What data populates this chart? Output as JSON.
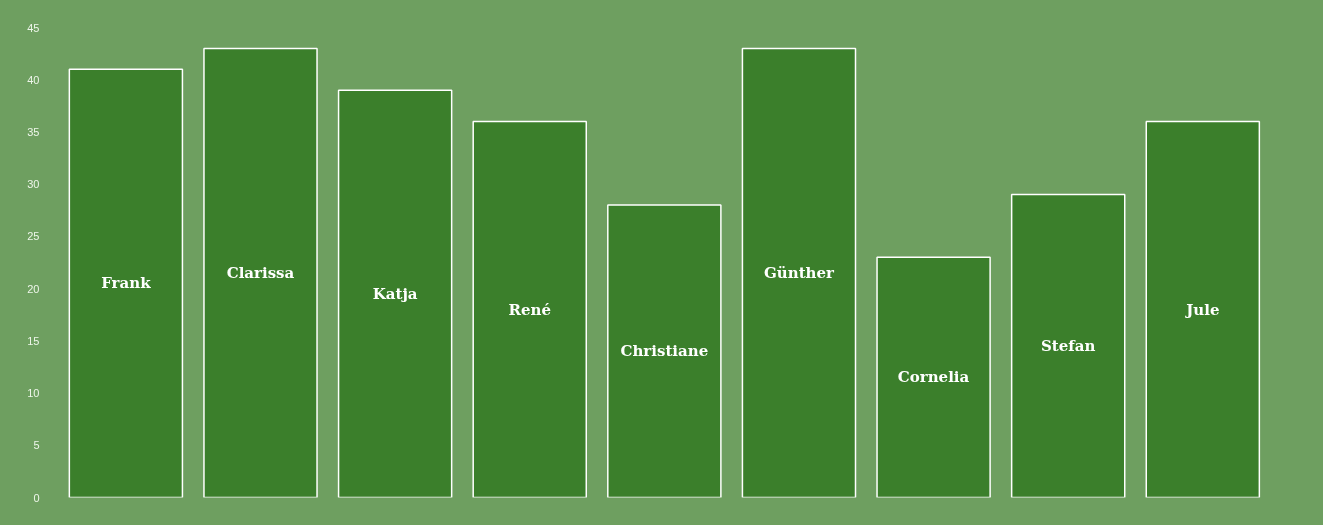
{
  "chart_data": {
    "type": "bar",
    "categories": [
      "Frank",
      "Clarissa",
      "Katja",
      "René",
      "Christiane",
      "Günther",
      "Cornelia",
      "Stefan",
      "Jule"
    ],
    "values": [
      41,
      43,
      39,
      36,
      28,
      43,
      23,
      29,
      36
    ],
    "color": "#3b7f2b",
    "ylim": [
      0,
      45
    ],
    "yticks": [
      0,
      5,
      10,
      15,
      20,
      25,
      30,
      35,
      40,
      45
    ],
    "grid": false,
    "tick_labels": "y"
  }
}
